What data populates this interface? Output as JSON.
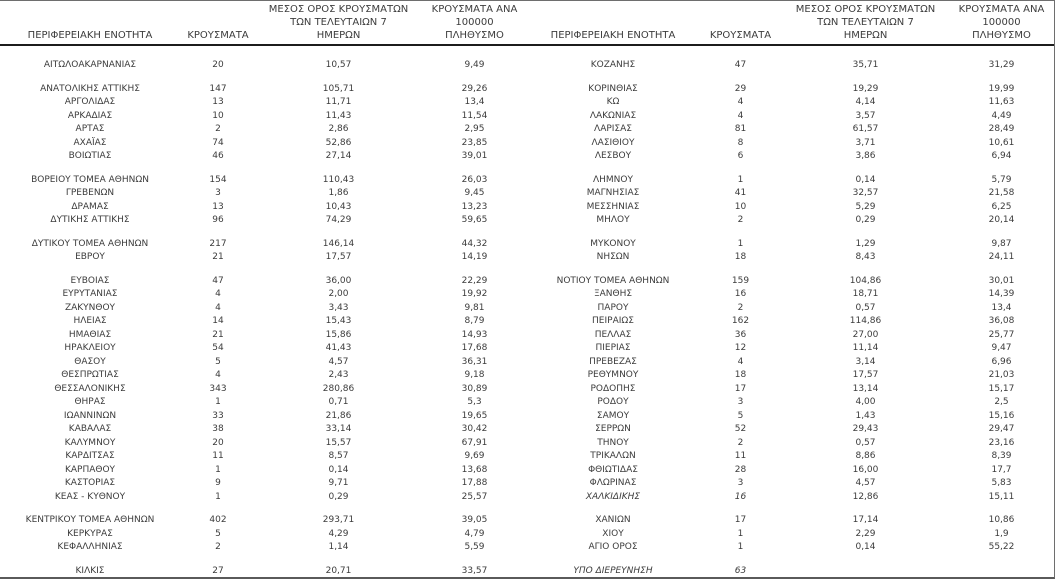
{
  "colors": {
    "text": "#3c3c3c",
    "header_rule": "#1c1c1c",
    "outer_border": "#6e6e6e",
    "background": "#ffffff"
  },
  "headers": {
    "region": "ΠΕΡΙΦΕΡΕΙΑΚΗ ΕΝΟΤΗΤΑ",
    "cases": "ΚΡΟΥΣΜΑΤΑ",
    "avg7": "ΜΕΣΟΣ ΟΡΟΣ ΚΡΟΥΣΜΑΤΩΝ\nΤΩΝ ΤΕΛΕΥΤΑΙΩΝ 7\nΗΜΕΡΩΝ",
    "per100k": "ΚΡΟΥΣΜΑΤΑ ΑΝΑ 100000\nΠΛΗΘΥΣΜΟ"
  },
  "left_rows": [
    {
      "region": "ΑΙΤΩΛΟΑΚΑΡΝΑΝΙΑΣ",
      "cases": "20",
      "avg7": "10,57",
      "per100k": "9,49"
    },
    {
      "region": "ΑΝΑΤΟΛΙΚΗΣ ΑΤΤΙΚΗΣ",
      "cases": "147",
      "avg7": "105,71",
      "per100k": "29,26",
      "gap": true
    },
    {
      "region": "ΑΡΓΟΛΙΔΑΣ",
      "cases": "13",
      "avg7": "11,71",
      "per100k": "13,4"
    },
    {
      "region": "ΑΡΚΑΔΙΑΣ",
      "cases": "10",
      "avg7": "11,43",
      "per100k": "11,54"
    },
    {
      "region": "ΑΡΤΑΣ",
      "cases": "2",
      "avg7": "2,86",
      "per100k": "2,95"
    },
    {
      "region": "ΑΧΑΪΑΣ",
      "cases": "74",
      "avg7": "52,86",
      "per100k": "23,85"
    },
    {
      "region": "ΒΟΙΩΤΙΑΣ",
      "cases": "46",
      "avg7": "27,14",
      "per100k": "39,01"
    },
    {
      "region": "ΒΟΡΕΙΟΥ ΤΟΜΕΑ ΑΘΗΝΩΝ",
      "cases": "154",
      "avg7": "110,43",
      "per100k": "26,03",
      "gap": true
    },
    {
      "region": "ΓΡΕΒΕΝΩΝ",
      "cases": "3",
      "avg7": "1,86",
      "per100k": "9,45"
    },
    {
      "region": "ΔΡΑΜΑΣ",
      "cases": "13",
      "avg7": "10,43",
      "per100k": "13,23"
    },
    {
      "region": "ΔΥΤΙΚΗΣ ΑΤΤΙΚΗΣ",
      "cases": "96",
      "avg7": "74,29",
      "per100k": "59,65"
    },
    {
      "region": "ΔΥΤΙΚΟΥ ΤΟΜΕΑ ΑΘΗΝΩΝ",
      "cases": "217",
      "avg7": "146,14",
      "per100k": "44,32",
      "gap": true
    },
    {
      "region": "ΕΒΡΟΥ",
      "cases": "21",
      "avg7": "17,57",
      "per100k": "14,19"
    },
    {
      "region": "ΕΥΒΟΙΑΣ",
      "cases": "47",
      "avg7": "36,00",
      "per100k": "22,29",
      "gap": true
    },
    {
      "region": "ΕΥΡΥΤΑΝΙΑΣ",
      "cases": "4",
      "avg7": "2,00",
      "per100k": "19,92"
    },
    {
      "region": "ΖΑΚΥΝΘΟΥ",
      "cases": "4",
      "avg7": "3,43",
      "per100k": "9,81"
    },
    {
      "region": "ΗΛΕΙΑΣ",
      "cases": "14",
      "avg7": "15,43",
      "per100k": "8,79"
    },
    {
      "region": "ΗΜΑΘΙΑΣ",
      "cases": "21",
      "avg7": "15,86",
      "per100k": "14,93"
    },
    {
      "region": "ΗΡΑΚΛΕΙΟΥ",
      "cases": "54",
      "avg7": "41,43",
      "per100k": "17,68"
    },
    {
      "region": "ΘΑΣΟΥ",
      "cases": "5",
      "avg7": "4,57",
      "per100k": "36,31"
    },
    {
      "region": "ΘΕΣΠΡΩΤΙΑΣ",
      "cases": "4",
      "avg7": "2,43",
      "per100k": "9,18"
    },
    {
      "region": "ΘΕΣΣΑΛΟΝΙΚΗΣ",
      "cases": "343",
      "avg7": "280,86",
      "per100k": "30,89"
    },
    {
      "region": "ΘΗΡΑΣ",
      "cases": "1",
      "avg7": "0,71",
      "per100k": "5,3"
    },
    {
      "region": "ΙΩΑΝΝΙΝΩΝ",
      "cases": "33",
      "avg7": "21,86",
      "per100k": "19,65"
    },
    {
      "region": "ΚΑΒΑΛΑΣ",
      "cases": "38",
      "avg7": "33,14",
      "per100k": "30,42"
    },
    {
      "region": "ΚΑΛΥΜΝΟΥ",
      "cases": "20",
      "avg7": "15,57",
      "per100k": "67,91"
    },
    {
      "region": "ΚΑΡΔΙΤΣΑΣ",
      "cases": "11",
      "avg7": "8,57",
      "per100k": "9,69"
    },
    {
      "region": "ΚΑΡΠΑΘΟΥ",
      "cases": "1",
      "avg7": "0,14",
      "per100k": "13,68"
    },
    {
      "region": "ΚΑΣΤΟΡΙΑΣ",
      "cases": "9",
      "avg7": "9,71",
      "per100k": "17,88"
    },
    {
      "region": "ΚΕΑΣ - ΚΥΘΝΟΥ",
      "cases": "1",
      "avg7": "0,29",
      "per100k": "25,57"
    },
    {
      "region": "ΚΕΝΤΡΙΚΟΥ ΤΟΜΕΑ ΑΘΗΝΩΝ",
      "cases": "402",
      "avg7": "293,71",
      "per100k": "39,05",
      "gap": true
    },
    {
      "region": "ΚΕΡΚΥΡΑΣ",
      "cases": "5",
      "avg7": "4,29",
      "per100k": "4,79"
    },
    {
      "region": "ΚΕΦΑΛΛΗΝΙΑΣ",
      "cases": "2",
      "avg7": "1,14",
      "per100k": "5,59"
    },
    {
      "region": "ΚΙΛΚΙΣ",
      "cases": "27",
      "avg7": "20,71",
      "per100k": "33,57",
      "gap": true
    }
  ],
  "right_rows": [
    {
      "region": "ΚΟΖΑΝΗΣ",
      "cases": "47",
      "avg7": "35,71",
      "per100k": "31,29"
    },
    {
      "region": "ΚΟΡΙΝΘΙΑΣ",
      "cases": "29",
      "avg7": "19,29",
      "per100k": "19,99",
      "gap": true
    },
    {
      "region": "ΚΩ",
      "cases": "4",
      "avg7": "4,14",
      "per100k": "11,63"
    },
    {
      "region": "ΛΑΚΩΝΙΑΣ",
      "cases": "4",
      "avg7": "3,57",
      "per100k": "4,49"
    },
    {
      "region": "ΛΑΡΙΣΑΣ",
      "cases": "81",
      "avg7": "61,57",
      "per100k": "28,49"
    },
    {
      "region": "ΛΑΣΙΘΙΟΥ",
      "cases": "8",
      "avg7": "3,71",
      "per100k": "10,61"
    },
    {
      "region": "ΛΕΣΒΟΥ",
      "cases": "6",
      "avg7": "3,86",
      "per100k": "6,94"
    },
    {
      "region": "ΛΗΜΝΟΥ",
      "cases": "1",
      "avg7": "0,14",
      "per100k": "5,79",
      "gap": true
    },
    {
      "region": "ΜΑΓΝΗΣΙΑΣ",
      "cases": "41",
      "avg7": "32,57",
      "per100k": "21,58"
    },
    {
      "region": "ΜΕΣΣΗΝΙΑΣ",
      "cases": "10",
      "avg7": "5,29",
      "per100k": "6,25"
    },
    {
      "region": "ΜΗΛΟΥ",
      "cases": "2",
      "avg7": "0,29",
      "per100k": "20,14"
    },
    {
      "region": "ΜΥΚΟΝΟΥ",
      "cases": "1",
      "avg7": "1,29",
      "per100k": "9,87",
      "gap": true
    },
    {
      "region": "ΝΗΣΩΝ",
      "cases": "18",
      "avg7": "8,43",
      "per100k": "24,11"
    },
    {
      "region": "ΝΟΤΙΟΥ ΤΟΜΕΑ ΑΘΗΝΩΝ",
      "cases": "159",
      "avg7": "104,86",
      "per100k": "30,01",
      "gap": true
    },
    {
      "region": "ΞΑΝΘΗΣ",
      "cases": "16",
      "avg7": "18,71",
      "per100k": "14,39"
    },
    {
      "region": "ΠΑΡΟΥ",
      "cases": "2",
      "avg7": "0,57",
      "per100k": "13,4"
    },
    {
      "region": "ΠΕΙΡΑΙΩΣ",
      "cases": "162",
      "avg7": "114,86",
      "per100k": "36,08"
    },
    {
      "region": "ΠΕΛΛΑΣ",
      "cases": "36",
      "avg7": "27,00",
      "per100k": "25,77"
    },
    {
      "region": "ΠΙΕΡΙΑΣ",
      "cases": "12",
      "avg7": "11,14",
      "per100k": "9,47"
    },
    {
      "region": "ΠΡΕΒΕΖΑΣ",
      "cases": "4",
      "avg7": "3,14",
      "per100k": "6,96"
    },
    {
      "region": "ΡΕΘΥΜΝΟΥ",
      "cases": "18",
      "avg7": "17,57",
      "per100k": "21,03"
    },
    {
      "region": "ΡΟΔΟΠΗΣ",
      "cases": "17",
      "avg7": "13,14",
      "per100k": "15,17"
    },
    {
      "region": "ΡΟΔΟΥ",
      "cases": "3",
      "avg7": "4,00",
      "per100k": "2,5"
    },
    {
      "region": "ΣΑΜΟΥ",
      "cases": "5",
      "avg7": "1,43",
      "per100k": "15,16"
    },
    {
      "region": "ΣΕΡΡΩΝ",
      "cases": "52",
      "avg7": "29,43",
      "per100k": "29,47"
    },
    {
      "region": "ΤΗΝΟΥ",
      "cases": "2",
      "avg7": "0,57",
      "per100k": "23,16"
    },
    {
      "region": "ΤΡΙΚΑΛΩΝ",
      "cases": "11",
      "avg7": "8,86",
      "per100k": "8,39"
    },
    {
      "region": "ΦΘΙΩΤΙΔΑΣ",
      "cases": "28",
      "avg7": "16,00",
      "per100k": "17,7"
    },
    {
      "region": "ΦΛΩΡΙΝΑΣ",
      "cases": "3",
      "avg7": "4,57",
      "per100k": "5,83"
    },
    {
      "region": "ΧΑΛΚΙΔΙΚΗΣ",
      "cases": "16",
      "avg7": "12,86",
      "per100k": "15,11",
      "italic": true
    },
    {
      "region": "ΧΑΝΙΩΝ",
      "cases": "17",
      "avg7": "17,14",
      "per100k": "10,86",
      "gap": true
    },
    {
      "region": "ΧΙΟΥ",
      "cases": "1",
      "avg7": "2,29",
      "per100k": "1,9"
    },
    {
      "region": "ΑΓΙΟ ΟΡΟΣ",
      "cases": "1",
      "avg7": "0,14",
      "per100k": "55,22"
    },
    {
      "region": "ΥΠΟ ΔΙΕΡΕΥΝΗΣΗ",
      "cases": "63",
      "avg7": "",
      "per100k": "",
      "gap": true,
      "italic": true
    }
  ]
}
